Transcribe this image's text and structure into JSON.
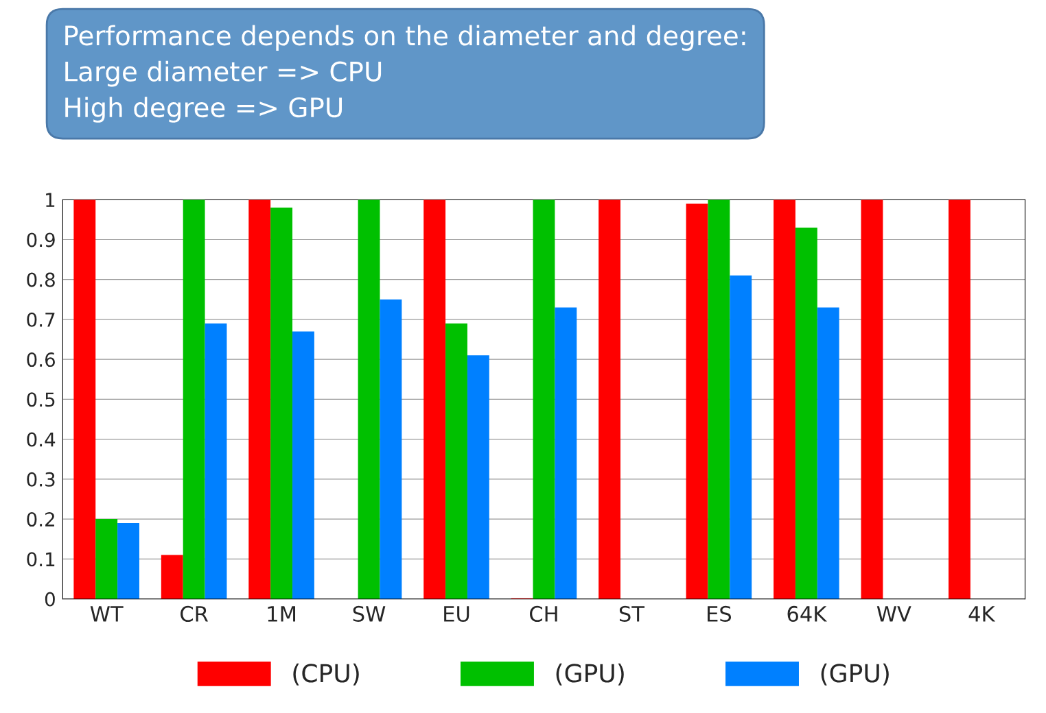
{
  "chart_data": {
    "type": "bar",
    "annotations": [
      "Performance depends on the diameter and degree:\nLarge diameter => CPU\nHigh degree => GPU"
    ],
    "categories": [
      "WT",
      "CR",
      "1M",
      "SW",
      "EU",
      "CH",
      "ST",
      "ES",
      "64K",
      "WV",
      "4K"
    ],
    "series": [
      {
        "name": "(CPU)",
        "color": "#ff0000",
        "values": [
          1,
          0.11,
          1,
          null,
          1,
          0.002,
          1,
          0.99,
          1,
          1,
          1
        ]
      },
      {
        "name": "(GPU)",
        "color": "#00c000",
        "values": [
          0.2,
          1,
          0.98,
          1,
          0.69,
          1,
          null,
          1,
          0.93,
          null,
          null
        ]
      },
      {
        "name": "(GPU)",
        "color": "#0080ff",
        "values": [
          0.19,
          0.69,
          0.67,
          0.75,
          0.61,
          0.73,
          null,
          0.81,
          0.73,
          null,
          null
        ]
      }
    ],
    "ylim": [
      0,
      1
    ],
    "yticks": [
      0,
      0.1,
      0.2,
      0.3,
      0.4,
      0.5,
      0.6,
      0.7,
      0.8,
      0.9,
      1
    ],
    "grid": "y",
    "legend": "bottom"
  }
}
